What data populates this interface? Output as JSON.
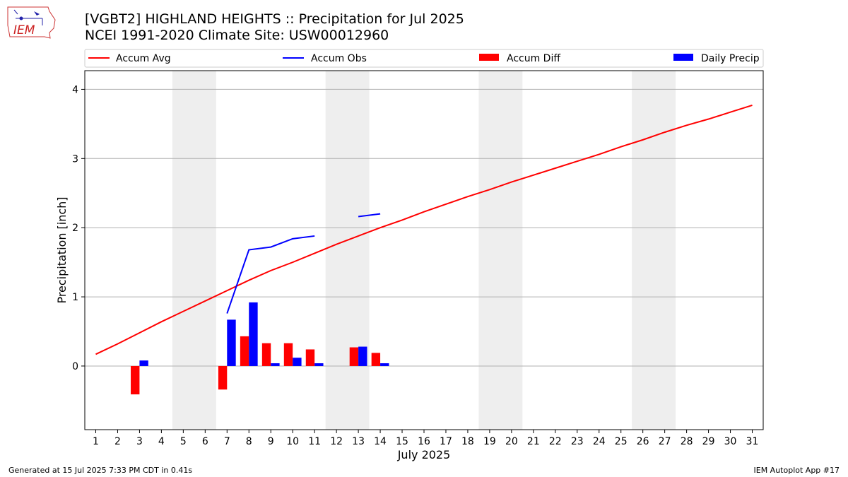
{
  "header": {
    "title_line1": "[VGBT2] HIGHLAND HEIGHTS :: Precipitation for Jul 2025",
    "title_line2": "NCEI 1991-2020 Climate Site: USW00012960"
  },
  "logo": {
    "text": "IEM",
    "icon": "iem-iowa-logo"
  },
  "footer": {
    "generated": "Generated at 15 Jul 2025 7:33 PM CDT in 0.41s",
    "app": "IEM Autoplot App #17"
  },
  "colors": {
    "avg": "#ff0000",
    "obs": "#0000ff",
    "diff": "#ff0000",
    "daily": "#0000ff",
    "weekend": "#eeeeee",
    "grid": "#b0b0b0"
  },
  "chart_data": {
    "type": "bar",
    "xlabel": "July 2025",
    "ylabel": "Precipitation [inch]",
    "xlim": [
      0.5,
      31.5
    ],
    "ylim": [
      -0.92,
      4.27
    ],
    "yticks": [
      0,
      1,
      2,
      3,
      4
    ],
    "x": [
      1,
      2,
      3,
      4,
      5,
      6,
      7,
      8,
      9,
      10,
      11,
      12,
      13,
      14,
      15,
      16,
      17,
      18,
      19,
      20,
      21,
      22,
      23,
      24,
      25,
      26,
      27,
      28,
      29,
      30,
      31
    ],
    "grid": "horizontal",
    "legend_placement": "top, above plot",
    "weekend_shading": [
      [
        4.5,
        6.5
      ],
      [
        11.5,
        13.5
      ],
      [
        18.5,
        20.5
      ],
      [
        25.5,
        27.5
      ]
    ],
    "legend": [
      "Accum Avg",
      "Accum Obs",
      "Accum Diff",
      "Daily Precip"
    ],
    "series": [
      {
        "name": "Accum Avg",
        "kind": "line",
        "x": [
          1,
          2,
          3,
          4,
          5,
          6,
          7,
          8,
          9,
          10,
          11,
          12,
          13,
          14,
          15,
          16,
          17,
          18,
          19,
          20,
          21,
          22,
          23,
          24,
          25,
          26,
          27,
          28,
          29,
          30,
          31
        ],
        "values": [
          0.17,
          0.32,
          0.48,
          0.64,
          0.79,
          0.94,
          1.09,
          1.24,
          1.38,
          1.5,
          1.63,
          1.76,
          1.88,
          2.0,
          2.11,
          2.23,
          2.34,
          2.45,
          2.55,
          2.66,
          2.76,
          2.86,
          2.96,
          3.06,
          3.17,
          3.27,
          3.38,
          3.48,
          3.57,
          3.67,
          3.77
        ]
      },
      {
        "name": "Accum Obs",
        "kind": "line",
        "segments": [
          {
            "x": [
              7,
              8,
              9,
              10,
              11
            ],
            "values": [
              0.76,
              1.68,
              1.72,
              1.84,
              1.88
            ]
          },
          {
            "x": [
              13,
              14
            ],
            "values": [
              2.16,
              2.2
            ]
          }
        ]
      },
      {
        "name": "Accum Diff",
        "kind": "bar",
        "x": [
          3,
          7,
          8,
          9,
          10,
          11,
          13,
          14
        ],
        "values": [
          -0.41,
          -0.34,
          0.43,
          0.33,
          0.33,
          0.24,
          0.27,
          0.19
        ]
      },
      {
        "name": "Daily Precip",
        "kind": "bar",
        "x": [
          3,
          7,
          8,
          9,
          10,
          11,
          13,
          14
        ],
        "values": [
          0.08,
          0.67,
          0.92,
          0.04,
          0.12,
          0.04,
          0.28,
          0.04
        ]
      }
    ]
  }
}
